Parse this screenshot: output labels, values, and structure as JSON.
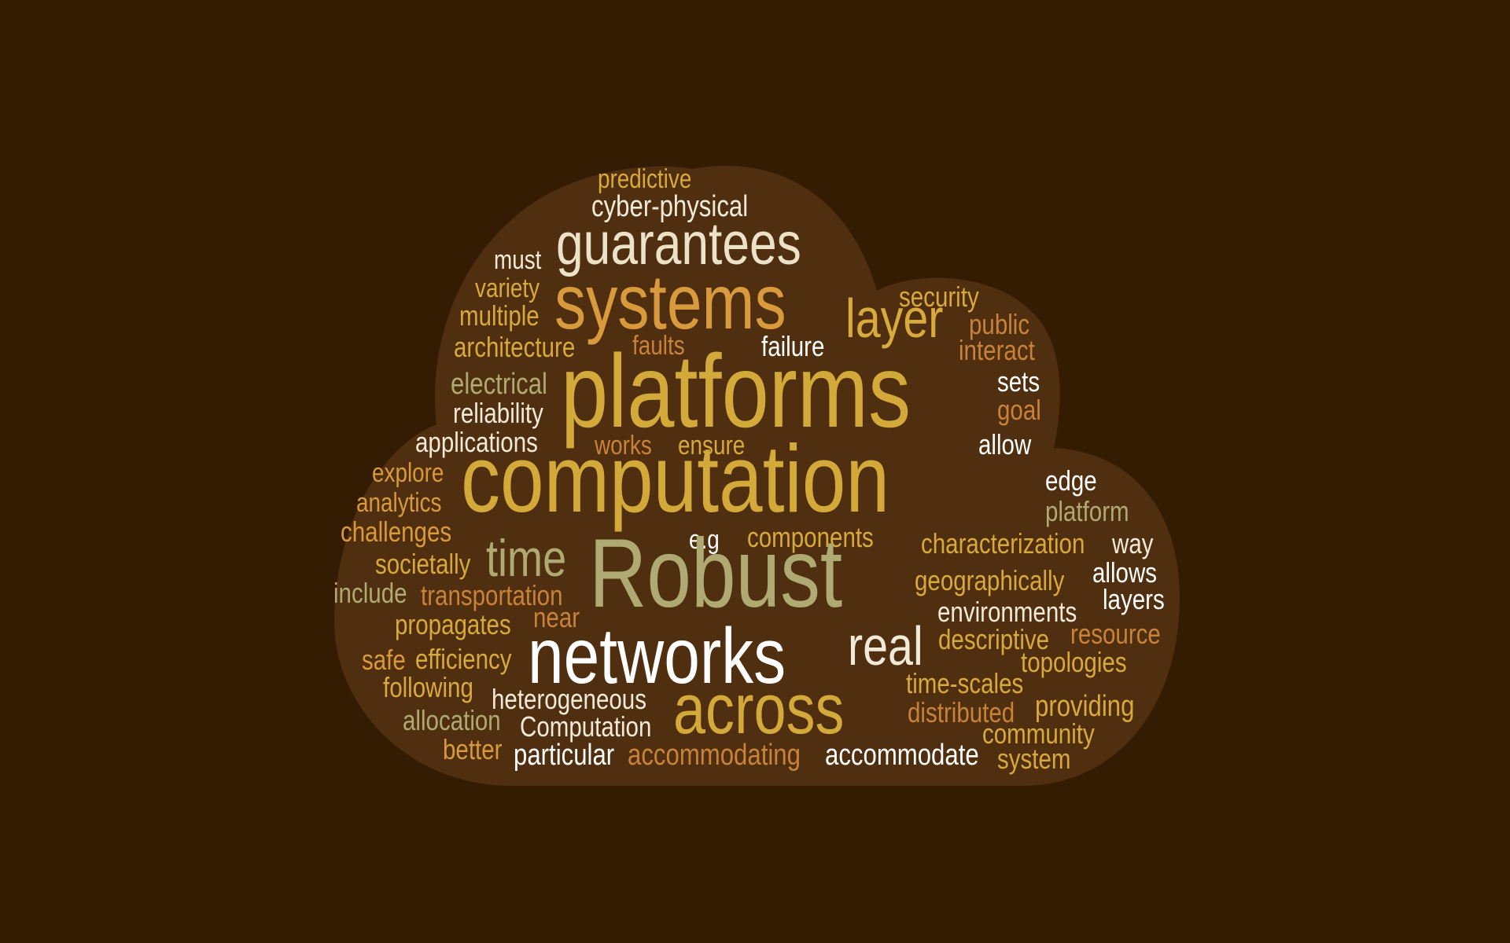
{
  "colors": {
    "background": "#341c02",
    "cloud": "#4f2f0f"
  },
  "words": [
    {
      "text": "predictive",
      "color": "#d8a93c"
    },
    {
      "text": "cyber-physical",
      "color": "#f2ead8"
    },
    {
      "text": "guarantees",
      "color": "#ece2c8"
    },
    {
      "text": "must",
      "color": "#f2ead8"
    },
    {
      "text": "variety",
      "color": "#d8a93c"
    },
    {
      "text": "systems",
      "color": "#d89a3c"
    },
    {
      "text": "layer",
      "color": "#d8a93c"
    },
    {
      "text": "security",
      "color": "#d8a93c"
    },
    {
      "text": "multiple",
      "color": "#d8a93c"
    },
    {
      "text": "public",
      "color": "#c9823a"
    },
    {
      "text": "architecture",
      "color": "#d8a93c"
    },
    {
      "text": "faults",
      "color": "#c9823a"
    },
    {
      "text": "failure",
      "color": "#ffffff"
    },
    {
      "text": "interact",
      "color": "#c9823a"
    },
    {
      "text": "platforms",
      "color": "#d3aa3a"
    },
    {
      "text": "electrical",
      "color": "#aeaa72"
    },
    {
      "text": "sets",
      "color": "#ffffff"
    },
    {
      "text": "reliability",
      "color": "#f2ead8"
    },
    {
      "text": "goal",
      "color": "#c9823a"
    },
    {
      "text": "applications",
      "color": "#f2ead8"
    },
    {
      "text": "works",
      "color": "#c9823a"
    },
    {
      "text": "ensure",
      "color": "#d8a93c"
    },
    {
      "text": "allow",
      "color": "#ffffff"
    },
    {
      "text": "explore",
      "color": "#d89a3c"
    },
    {
      "text": "computation",
      "color": "#d3aa3a"
    },
    {
      "text": "edge",
      "color": "#ffffff"
    },
    {
      "text": "analytics",
      "color": "#d89a3c"
    },
    {
      "text": "platform",
      "color": "#aeaa72"
    },
    {
      "text": "challenges",
      "color": "#d89a3c"
    },
    {
      "text": "e.g",
      "color": "#ffffff"
    },
    {
      "text": "components",
      "color": "#d8a93c"
    },
    {
      "text": "time",
      "color": "#aeaa72"
    },
    {
      "text": "characterization",
      "color": "#d8a93c"
    },
    {
      "text": "way",
      "color": "#f2ead8"
    },
    {
      "text": "societally",
      "color": "#d8a93c"
    },
    {
      "text": "Robust",
      "color": "#aeaa72"
    },
    {
      "text": "allows",
      "color": "#ffffff"
    },
    {
      "text": "geographically",
      "color": "#d8a93c"
    },
    {
      "text": "include",
      "color": "#aeaa72"
    },
    {
      "text": "transportation",
      "color": "#c9823a"
    },
    {
      "text": "layers",
      "color": "#ffffff"
    },
    {
      "text": "environments",
      "color": "#f2ead8"
    },
    {
      "text": "near",
      "color": "#c9823a"
    },
    {
      "text": "propagates",
      "color": "#d8a93c"
    },
    {
      "text": "resource",
      "color": "#c9823a"
    },
    {
      "text": "descriptive",
      "color": "#d8a93c"
    },
    {
      "text": "networks",
      "color": "#ffffff"
    },
    {
      "text": "real",
      "color": "#f2ead8"
    },
    {
      "text": "safe",
      "color": "#d89a3c"
    },
    {
      "text": "efficiency",
      "color": "#d8a93c"
    },
    {
      "text": "topologies",
      "color": "#d8a93c"
    },
    {
      "text": "following",
      "color": "#d8a93c"
    },
    {
      "text": "time-scales",
      "color": "#d8a93c"
    },
    {
      "text": "heterogeneous",
      "color": "#f2ead8"
    },
    {
      "text": "providing",
      "color": "#d8a93c"
    },
    {
      "text": "across",
      "color": "#d3aa3a"
    },
    {
      "text": "distributed",
      "color": "#c9823a"
    },
    {
      "text": "allocation",
      "color": "#aeaa72"
    },
    {
      "text": "Computation",
      "color": "#f2ead8"
    },
    {
      "text": "community",
      "color": "#d8a93c"
    },
    {
      "text": "better",
      "color": "#d89a3c"
    },
    {
      "text": "particular",
      "color": "#ffffff"
    },
    {
      "text": "accommodating",
      "color": "#c9823a"
    },
    {
      "text": "accommodate",
      "color": "#ffffff"
    },
    {
      "text": "system",
      "color": "#d8a93c"
    }
  ]
}
